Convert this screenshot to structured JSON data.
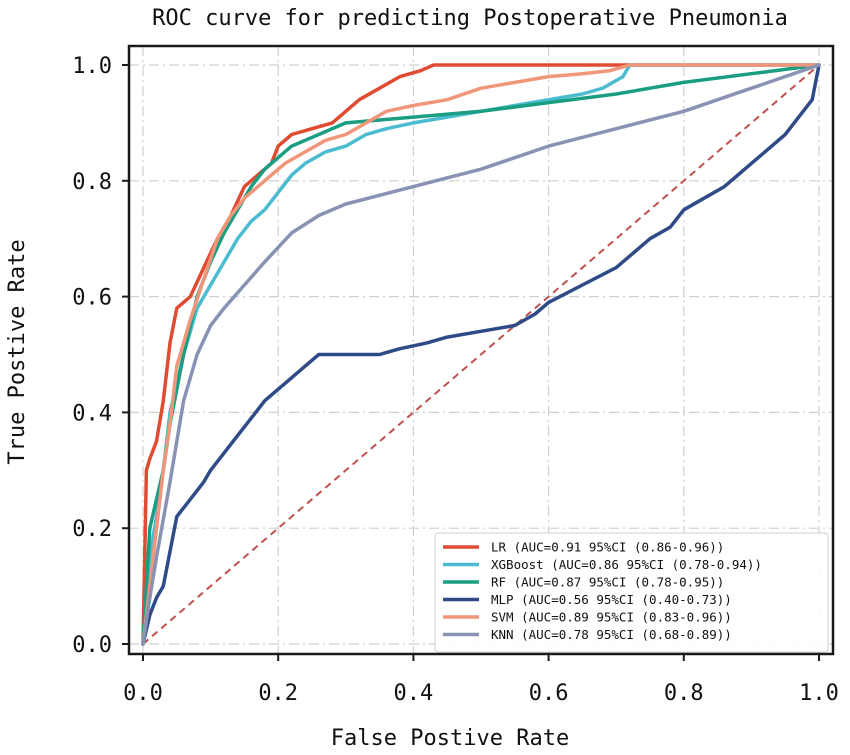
{
  "chart_data": {
    "type": "line",
    "title": "ROC curve for predicting Postoperative Pneumonia",
    "xlabel": "False Postive Rate",
    "ylabel": "True Postive Rate",
    "xlim": [
      0.0,
      1.0
    ],
    "ylim": [
      0.0,
      1.0
    ],
    "xticks": [
      "0.0",
      "0.2",
      "0.4",
      "0.6",
      "0.8",
      "1.0"
    ],
    "yticks": [
      "0.0",
      "0.2",
      "0.4",
      "0.6",
      "0.8",
      "1.0"
    ],
    "grid": true,
    "legend_position": "lower-right",
    "reference_line": {
      "x": [
        0,
        1
      ],
      "y": [
        0,
        1
      ],
      "color": "#c0504d",
      "style": "dashed"
    },
    "series": [
      {
        "name": "LR",
        "legend": "LR  (AUC=0.91 95%CI (0.86-0.96))",
        "color": "#e04b32",
        "x": [
          0,
          0.005,
          0.01,
          0.02,
          0.03,
          0.04,
          0.05,
          0.07,
          0.09,
          0.11,
          0.13,
          0.15,
          0.17,
          0.19,
          0.2,
          0.22,
          0.25,
          0.28,
          0.3,
          0.32,
          0.35,
          0.38,
          0.41,
          0.43,
          0.5,
          0.6,
          0.7,
          0.8,
          0.9,
          1.0
        ],
        "y": [
          0,
          0.3,
          0.32,
          0.35,
          0.42,
          0.52,
          0.58,
          0.6,
          0.65,
          0.7,
          0.74,
          0.79,
          0.81,
          0.83,
          0.86,
          0.88,
          0.89,
          0.9,
          0.92,
          0.94,
          0.96,
          0.98,
          0.99,
          1.0,
          1.0,
          1.0,
          1.0,
          1.0,
          1.0,
          1.0
        ]
      },
      {
        "name": "XGBoost",
        "legend": "XGBoost (AUC=0.86 95%CI (0.78-0.94))",
        "color": "#4bbcd0",
        "x": [
          0,
          0.01,
          0.02,
          0.03,
          0.04,
          0.06,
          0.08,
          0.1,
          0.12,
          0.14,
          0.16,
          0.18,
          0.2,
          0.22,
          0.24,
          0.27,
          0.3,
          0.33,
          0.36,
          0.4,
          0.45,
          0.5,
          0.55,
          0.6,
          0.65,
          0.68,
          0.71,
          0.72,
          0.8,
          1.0
        ],
        "y": [
          0,
          0.15,
          0.22,
          0.3,
          0.4,
          0.5,
          0.58,
          0.62,
          0.66,
          0.7,
          0.73,
          0.75,
          0.78,
          0.81,
          0.83,
          0.85,
          0.86,
          0.88,
          0.89,
          0.9,
          0.91,
          0.92,
          0.93,
          0.94,
          0.95,
          0.96,
          0.98,
          1.0,
          1.0,
          1.0
        ]
      },
      {
        "name": "RF",
        "legend": "RF  (AUC=0.87 95%CI (0.78-0.95))",
        "color": "#1a9e82",
        "x": [
          0,
          0.01,
          0.02,
          0.03,
          0.04,
          0.06,
          0.08,
          0.1,
          0.12,
          0.14,
          0.16,
          0.18,
          0.2,
          0.22,
          0.24,
          0.26,
          0.28,
          0.3,
          0.35,
          0.4,
          0.5,
          0.6,
          0.7,
          0.8,
          0.9,
          1.0
        ],
        "y": [
          0,
          0.2,
          0.25,
          0.3,
          0.38,
          0.5,
          0.6,
          0.66,
          0.71,
          0.75,
          0.79,
          0.82,
          0.84,
          0.86,
          0.87,
          0.88,
          0.89,
          0.9,
          0.905,
          0.91,
          0.92,
          0.935,
          0.95,
          0.97,
          0.985,
          1.0
        ]
      },
      {
        "name": "MLP",
        "legend": "MLP (AUC=0.56 95%CI (0.40-0.73))",
        "color": "#2e4a87",
        "x": [
          0,
          0.01,
          0.02,
          0.03,
          0.04,
          0.05,
          0.07,
          0.09,
          0.1,
          0.12,
          0.14,
          0.16,
          0.18,
          0.2,
          0.22,
          0.24,
          0.26,
          0.3,
          0.35,
          0.38,
          0.42,
          0.45,
          0.5,
          0.55,
          0.58,
          0.6,
          0.65,
          0.7,
          0.72,
          0.75,
          0.78,
          0.8,
          0.83,
          0.86,
          0.88,
          0.9,
          0.92,
          0.95,
          0.97,
          0.99,
          1.0
        ],
        "y": [
          0,
          0.05,
          0.08,
          0.1,
          0.16,
          0.22,
          0.25,
          0.28,
          0.3,
          0.33,
          0.36,
          0.39,
          0.42,
          0.44,
          0.46,
          0.48,
          0.5,
          0.5,
          0.5,
          0.51,
          0.52,
          0.53,
          0.54,
          0.55,
          0.57,
          0.59,
          0.62,
          0.65,
          0.67,
          0.7,
          0.72,
          0.75,
          0.77,
          0.79,
          0.81,
          0.83,
          0.85,
          0.88,
          0.91,
          0.94,
          1.0
        ]
      },
      {
        "name": "SVM",
        "legend": "SVM (AUC=0.89 95%CI (0.83-0.96))",
        "color": "#f0967a",
        "x": [
          0,
          0.01,
          0.02,
          0.03,
          0.04,
          0.05,
          0.07,
          0.09,
          0.11,
          0.13,
          0.15,
          0.17,
          0.19,
          0.21,
          0.24,
          0.27,
          0.3,
          0.33,
          0.36,
          0.4,
          0.45,
          0.5,
          0.55,
          0.6,
          0.65,
          0.69,
          0.72,
          0.8,
          1.0
        ],
        "y": [
          0,
          0.1,
          0.2,
          0.3,
          0.38,
          0.48,
          0.56,
          0.63,
          0.7,
          0.74,
          0.77,
          0.79,
          0.81,
          0.83,
          0.85,
          0.87,
          0.88,
          0.9,
          0.92,
          0.93,
          0.94,
          0.96,
          0.97,
          0.98,
          0.985,
          0.99,
          1.0,
          1.0,
          1.0
        ]
      },
      {
        "name": "KNN",
        "legend": "KNN (AUC=0.78 95%CI (0.68-0.89))",
        "color": "#8893b4",
        "x": [
          0,
          0.01,
          0.02,
          0.04,
          0.06,
          0.08,
          0.1,
          0.12,
          0.15,
          0.18,
          0.22,
          0.26,
          0.3,
          0.4,
          0.5,
          0.6,
          0.7,
          0.8,
          0.9,
          1.0
        ],
        "y": [
          0,
          0.08,
          0.15,
          0.28,
          0.42,
          0.5,
          0.55,
          0.58,
          0.62,
          0.66,
          0.71,
          0.74,
          0.76,
          0.79,
          0.82,
          0.86,
          0.89,
          0.92,
          0.96,
          1.0
        ]
      }
    ]
  }
}
